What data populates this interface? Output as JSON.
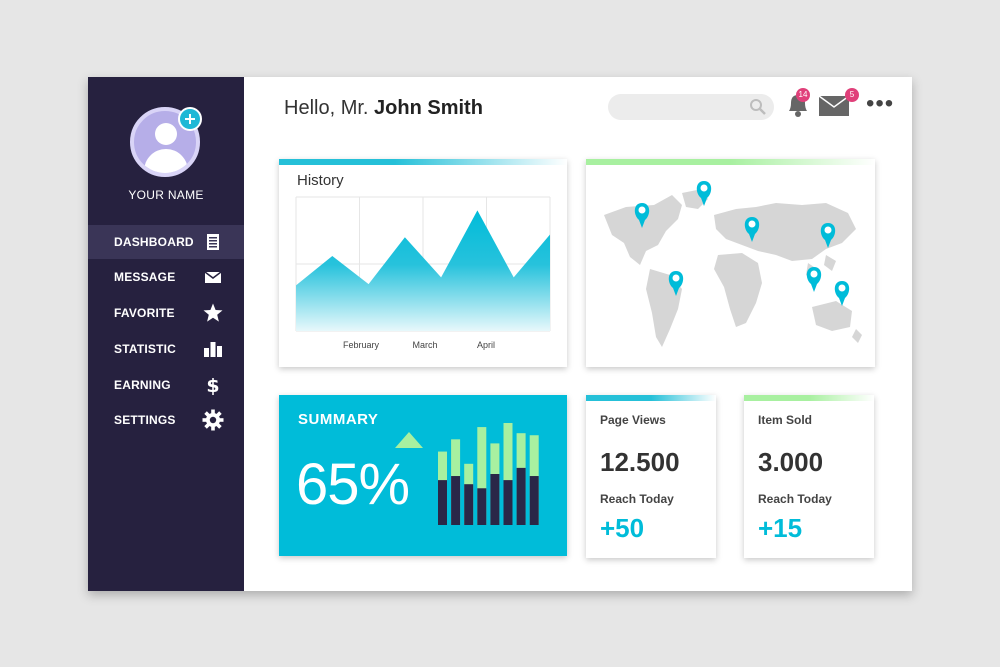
{
  "sidebar": {
    "user_name": "YOUR NAME",
    "items": [
      {
        "label": "DASHBOARD",
        "icon": "document-icon",
        "active": true
      },
      {
        "label": "MESSAGE",
        "icon": "envelope-icon"
      },
      {
        "label": "FAVORITE",
        "icon": "star-icon"
      },
      {
        "label": "STATISTIC",
        "icon": "bar-chart-icon"
      },
      {
        "label": "EARNING",
        "icon": "dollar-icon"
      },
      {
        "label": "SETTINGS",
        "icon": "gear-icon"
      }
    ]
  },
  "header": {
    "greeting_prefix": "Hello, Mr.",
    "user_name": "John Smith",
    "notifications_count": "14",
    "messages_count": "5"
  },
  "history": {
    "title": "History",
    "chart_data": {
      "type": "area",
      "title": "History",
      "x_tick_labels": [
        "February",
        "March",
        "April"
      ],
      "values": [
        34,
        56,
        35,
        70,
        40,
        90,
        40,
        72
      ],
      "ylim": [
        0,
        100
      ],
      "grid": true
    }
  },
  "summary": {
    "title": "SUMMARY",
    "value": "65%",
    "chart_data": {
      "type": "bar",
      "series": [
        {
          "values": [
            72,
            84,
            60,
            96,
            80,
            100,
            90,
            88
          ]
        },
        {
          "values": [
            44,
            48,
            40,
            36,
            50,
            44,
            56,
            48
          ]
        }
      ],
      "ylim": [
        0,
        100
      ]
    }
  },
  "page_views": {
    "title": "Page Views",
    "value": "12.500",
    "sub_label": "Reach Today",
    "delta": "+50"
  },
  "item_sold": {
    "title": "Item Sold",
    "value": "3.000",
    "sub_label": "Reach Today",
    "delta": "+15"
  },
  "colors": {
    "sidebar": "#26213f",
    "accent": "#00bcd9",
    "green": "#a8f0a0",
    "dark_bar": "#2a2748",
    "badge": "#e0407a"
  }
}
